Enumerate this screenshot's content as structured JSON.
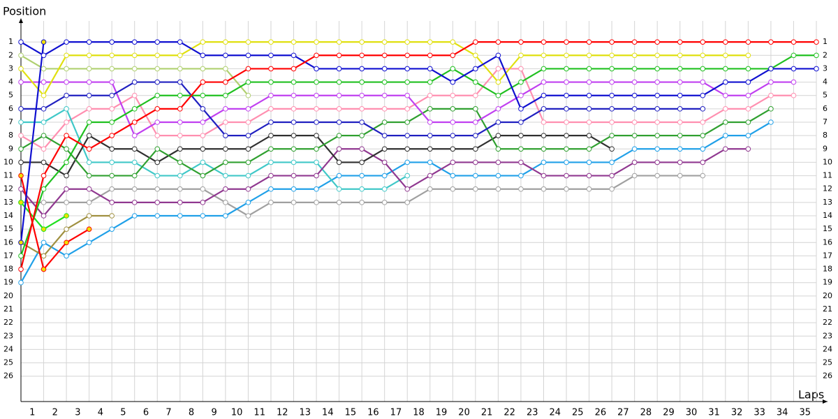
{
  "chart_data": {
    "type": "line",
    "ylabel": "Position",
    "xlabel": "Laps",
    "x": [
      0,
      1,
      2,
      3,
      4,
      5,
      6,
      7,
      8,
      9,
      10,
      11,
      12,
      13,
      14,
      15,
      16,
      17,
      18,
      19,
      20,
      21,
      22,
      23,
      24,
      25,
      26,
      27,
      28,
      29,
      30,
      31,
      32,
      33,
      34,
      35
    ],
    "xlim": [
      0,
      35
    ],
    "ylim": [
      0,
      28
    ],
    "y_inverted": true,
    "grid": true,
    "xticks": [
      1,
      2,
      3,
      4,
      5,
      6,
      7,
      8,
      9,
      10,
      11,
      12,
      13,
      14,
      15,
      16,
      17,
      18,
      19,
      20,
      21,
      22,
      23,
      24,
      25,
      26,
      27,
      28,
      29,
      30,
      31,
      32,
      33,
      34,
      35
    ],
    "yticks": [
      1,
      2,
      3,
      4,
      5,
      6,
      7,
      8,
      9,
      10,
      11,
      12,
      13,
      14,
      15,
      16,
      17,
      18,
      19,
      20,
      21,
      22,
      23,
      24,
      25,
      26
    ],
    "series": [
      {
        "color": "#ff8fb0",
        "marker_fill": "#ffffff",
        "values": [
          8,
          9,
          7,
          6,
          6,
          5,
          8,
          8,
          8,
          7,
          7,
          6,
          6,
          6,
          6,
          6,
          6,
          6,
          5,
          5,
          5,
          3,
          3,
          7,
          7,
          7,
          7,
          7,
          7,
          7,
          7,
          6,
          6,
          5,
          5,
          null
        ]
      },
      {
        "color": "#a0a0a0",
        "marker_fill": "#ffffff",
        "values": [
          13,
          13,
          13,
          13,
          12,
          12,
          12,
          12,
          12,
          13,
          14,
          13,
          13,
          13,
          13,
          13,
          13,
          13,
          12,
          12,
          12,
          12,
          12,
          12,
          12,
          12,
          12,
          11,
          11,
          11,
          11,
          null,
          null,
          null,
          null,
          null
        ]
      },
      {
        "color": "#20a0e8",
        "marker_fill": "#ffffff",
        "values": [
          19,
          16,
          17,
          16,
          15,
          14,
          14,
          14,
          14,
          14,
          13,
          12,
          12,
          12,
          11,
          11,
          11,
          10,
          10,
          11,
          11,
          11,
          11,
          10,
          10,
          10,
          10,
          9,
          9,
          9,
          9,
          8,
          8,
          7,
          null,
          null
        ]
      },
      {
        "color": "#40c8c8",
        "marker_fill": "#ffffff",
        "values": [
          7,
          7,
          6,
          10,
          10,
          10,
          11,
          11,
          10,
          11,
          11,
          10,
          10,
          10,
          12,
          12,
          12,
          11,
          null,
          null,
          null,
          null,
          null,
          null,
          null,
          null,
          null,
          null,
          null,
          null,
          null,
          null,
          null,
          null,
          null,
          null
        ]
      },
      {
        "color": "#903890",
        "marker_fill": "#ffffff",
        "values": [
          12,
          14,
          12,
          12,
          13,
          13,
          13,
          13,
          13,
          12,
          12,
          11,
          11,
          11,
          9,
          9,
          10,
          12,
          11,
          10,
          10,
          10,
          10,
          11,
          11,
          11,
          11,
          10,
          10,
          10,
          10,
          9,
          9,
          null,
          null,
          null
        ]
      },
      {
        "color": "#303030",
        "marker_fill": "#ffffff",
        "values": [
          10,
          10,
          11,
          8,
          9,
          9,
          10,
          9,
          9,
          9,
          9,
          8,
          8,
          8,
          10,
          10,
          9,
          9,
          9,
          9,
          9,
          8,
          8,
          8,
          8,
          8,
          9,
          null,
          null,
          null,
          null,
          null,
          null,
          null,
          null,
          null
        ]
      },
      {
        "color": "#30a030",
        "marker_fill": "#ffffff",
        "values": [
          9,
          8,
          9,
          11,
          11,
          11,
          9,
          10,
          11,
          10,
          10,
          9,
          9,
          9,
          8,
          8,
          7,
          7,
          6,
          6,
          6,
          9,
          9,
          9,
          9,
          9,
          8,
          8,
          8,
          8,
          8,
          7,
          7,
          6,
          null,
          null
        ]
      },
      {
        "color": "#c040f0",
        "marker_fill": "#ffffff",
        "values": [
          4,
          4,
          4,
          4,
          4,
          8,
          7,
          7,
          7,
          6,
          6,
          5,
          5,
          5,
          5,
          5,
          5,
          5,
          7,
          7,
          7,
          6,
          5,
          4,
          4,
          4,
          4,
          4,
          4,
          4,
          4,
          5,
          5,
          4,
          4,
          null
        ]
      },
      {
        "color": "#b0d070",
        "marker_fill": "#ffffff",
        "values": [
          2,
          3,
          3,
          3,
          3,
          3,
          3,
          3,
          3,
          3,
          5,
          null,
          null,
          null,
          null,
          null,
          null,
          null,
          null,
          null,
          null,
          null,
          null,
          null,
          null,
          null,
          null,
          null,
          null,
          null,
          null,
          null,
          null,
          null,
          null,
          null
        ]
      },
      {
        "color": "#a09040",
        "marker_fill": "#ffffff",
        "values": [
          16,
          17,
          15,
          14,
          14,
          null,
          null,
          null,
          null,
          null,
          null,
          null,
          null,
          null,
          null,
          null,
          null,
          null,
          null,
          null,
          null,
          null,
          null,
          null,
          null,
          null,
          null,
          null,
          null,
          null,
          null,
          null,
          null,
          null,
          null,
          null
        ]
      },
      {
        "color": "#20e020",
        "marker_fill": "#f0e000",
        "values": [
          13,
          15,
          14,
          null,
          null,
          null,
          null,
          null,
          null,
          null,
          null,
          null,
          null,
          null,
          null,
          null,
          null,
          null,
          null,
          null,
          null,
          null,
          null,
          null,
          null,
          null,
          null,
          null,
          null,
          null,
          null,
          null,
          null,
          null,
          null,
          null
        ]
      },
      {
        "color": "#ff0000",
        "marker_fill": "#f0e000",
        "values": [
          11,
          18,
          16,
          15,
          null,
          null,
          null,
          null,
          null,
          null,
          null,
          null,
          null,
          null,
          null,
          null,
          null,
          null,
          null,
          null,
          null,
          null,
          null,
          null,
          null,
          null,
          null,
          null,
          null,
          null,
          null,
          null,
          null,
          null,
          null,
          null
        ]
      },
      {
        "color": "#2020c0",
        "marker_fill": "#ffffff",
        "values": [
          6,
          6,
          5,
          5,
          5,
          4,
          4,
          4,
          6,
          8,
          8,
          7,
          7,
          7,
          7,
          7,
          8,
          8,
          8,
          8,
          8,
          7,
          7,
          6,
          6,
          6,
          6,
          6,
          6,
          6,
          6,
          null,
          null,
          null,
          null,
          null
        ]
      },
      {
        "color": "#20c020",
        "marker_fill": "#ffffff",
        "values": [
          17,
          12,
          10,
          7,
          7,
          6,
          5,
          5,
          5,
          5,
          4,
          4,
          4,
          4,
          4,
          4,
          4,
          4,
          4,
          3,
          4,
          5,
          4,
          3,
          3,
          3,
          3,
          3,
          3,
          3,
          3,
          3,
          3,
          3,
          2,
          2
        ]
      },
      {
        "color": "#e0e010",
        "marker_fill": "#ffffff",
        "values": [
          3,
          5,
          2,
          2,
          2,
          2,
          2,
          2,
          1,
          1,
          1,
          1,
          1,
          1,
          1,
          1,
          1,
          1,
          1,
          1,
          2,
          4,
          2,
          2,
          2,
          2,
          2,
          2,
          2,
          2,
          2,
          2,
          2,
          null,
          null,
          null
        ]
      },
      {
        "color": "#1010d0",
        "marker_fill": "#f0e000",
        "values": [
          16,
          1,
          null,
          null,
          null,
          null,
          null,
          null,
          null,
          null,
          null,
          null,
          null,
          null,
          null,
          null,
          null,
          null,
          null,
          null,
          null,
          null,
          null,
          null,
          null,
          null,
          null,
          null,
          null,
          null,
          null,
          null,
          null,
          null,
          null,
          null
        ]
      },
      {
        "color": "#1010d0",
        "marker_fill": "#ffffff",
        "values": [
          1,
          2,
          1,
          1,
          1,
          1,
          1,
          1,
          2,
          2,
          2,
          2,
          2,
          3,
          3,
          3,
          3,
          3,
          3,
          4,
          3,
          2,
          6,
          5,
          5,
          5,
          5,
          5,
          5,
          5,
          5,
          4,
          4,
          3,
          3,
          3
        ]
      },
      {
        "color": "#ff0000",
        "marker_fill": "#ffffff",
        "values": [
          18,
          11,
          8,
          9,
          8,
          7,
          6,
          6,
          4,
          4,
          3,
          3,
          3,
          2,
          2,
          2,
          2,
          2,
          2,
          2,
          1,
          1,
          1,
          1,
          1,
          1,
          1,
          1,
          1,
          1,
          1,
          1,
          1,
          1,
          1,
          1
        ]
      }
    ]
  }
}
